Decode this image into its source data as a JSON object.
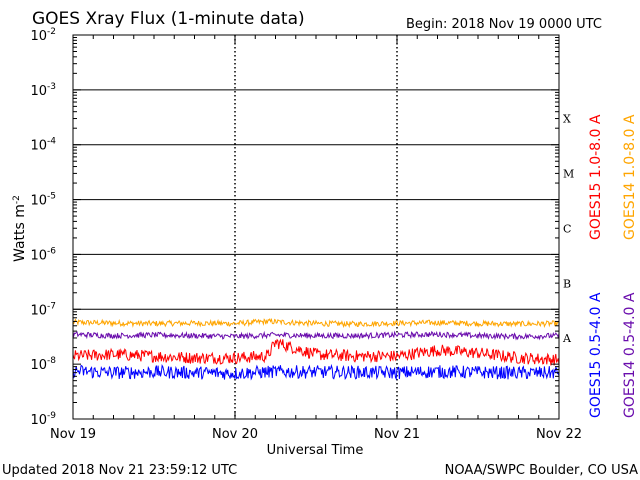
{
  "colors": {
    "goes15_long": "#ff0000",
    "goes14_long": "#ffa500",
    "goes15_short": "#0000ff",
    "goes14_short": "#6a0dad",
    "axes": "#000000",
    "background": "#ffffff"
  },
  "chart_data": {
    "type": "line",
    "title": "GOES Xray Flux (1-minute data)",
    "begin_label": "Begin:  2018 Nov 19 0000 UTC",
    "xlabel": "Universal Time",
    "ylabel": "Watts m",
    "ylabel_superscript": "-2",
    "yscale": "log",
    "ylim": [
      1e-09,
      0.01
    ],
    "xlim_days": [
      0,
      3
    ],
    "x_ticks": [
      {
        "label": "Nov 19",
        "day": 0
      },
      {
        "label": "Nov 20",
        "day": 1
      },
      {
        "label": "Nov 21",
        "day": 2
      },
      {
        "label": "Nov 22",
        "day": 3
      }
    ],
    "y_ticks": [
      {
        "mant": "10",
        "exp": "-9",
        "value": 1e-09
      },
      {
        "mant": "10",
        "exp": "-8",
        "value": 1e-08
      },
      {
        "mant": "10",
        "exp": "-7",
        "value": 1e-07
      },
      {
        "mant": "10",
        "exp": "-6",
        "value": 1e-06
      },
      {
        "mant": "10",
        "exp": "-5",
        "value": 1e-05
      },
      {
        "mant": "10",
        "exp": "-4",
        "value": 0.0001
      },
      {
        "mant": "10",
        "exp": "-3",
        "value": 0.001
      },
      {
        "mant": "10",
        "exp": "-2",
        "value": 0.01
      }
    ],
    "flare_classes": [
      {
        "label": "A",
        "value": 1e-08
      },
      {
        "label": "B",
        "value": 1e-07
      },
      {
        "label": "C",
        "value": 1e-06
      },
      {
        "label": "M",
        "value": 1e-05
      },
      {
        "label": "X",
        "value": 0.0001
      }
    ],
    "grid": "horizontal lines at each decade from 1e-7 to 1e-3, dotted vertical at day boundaries",
    "series": [
      {
        "name": "GOES14 1.0-8.0 A",
        "color": "#ffa500",
        "x": [
          0,
          0.25,
          0.5,
          0.75,
          1.0,
          1.2,
          1.5,
          1.75,
          2.0,
          2.25,
          2.5,
          2.75,
          3.0
        ],
        "y": [
          5.8e-08,
          5.6e-08,
          5.5e-08,
          5.6e-08,
          5.5e-08,
          6e-08,
          5.5e-08,
          5.4e-08,
          5.6e-08,
          5.7e-08,
          5.5e-08,
          5.4e-08,
          5.5e-08
        ]
      },
      {
        "name": "GOES15 1.0-8.0 A",
        "color": "#ff0000",
        "x": [
          0,
          0.25,
          0.5,
          0.75,
          1.0,
          1.2,
          1.25,
          1.5,
          1.75,
          2.0,
          2.25,
          2.5,
          2.75,
          3.0
        ],
        "y": [
          1.4e-08,
          1.5e-08,
          1.4e-08,
          1.3e-08,
          1.3e-08,
          1.4e-08,
          2.5e-08,
          1.5e-08,
          1.4e-08,
          1.4e-08,
          1.8e-08,
          1.6e-08,
          1.3e-08,
          1.2e-08
        ]
      },
      {
        "name": "GOES14 0.5-4.0 A",
        "color": "#6a0dad",
        "x": [
          0,
          0.25,
          0.5,
          0.75,
          1.0,
          1.25,
          1.5,
          1.75,
          2.0,
          2.25,
          2.5,
          2.75,
          3.0
        ],
        "y": [
          3.5e-08,
          3.3e-08,
          3.4e-08,
          3.3e-08,
          3.2e-08,
          3.4e-08,
          3.3e-08,
          3.3e-08,
          3.4e-08,
          3.5e-08,
          3.3e-08,
          3.2e-08,
          3.3e-08
        ]
      },
      {
        "name": "GOES15 0.5-4.0 A",
        "color": "#0000ff",
        "x": [
          0,
          0.25,
          0.5,
          0.75,
          1.0,
          1.25,
          1.5,
          1.75,
          2.0,
          2.25,
          2.5,
          2.75,
          3.0
        ],
        "y": [
          7.5e-09,
          7e-09,
          7.2e-09,
          7e-09,
          6.8e-09,
          7.3e-09,
          7.2e-09,
          7.1e-09,
          7e-09,
          7.3e-09,
          7.1e-09,
          6.9e-09,
          7e-09
        ]
      }
    ],
    "legend_placement": "right side, vertical"
  },
  "footer": {
    "updated": "Updated 2018 Nov 21 23:59:12 UTC",
    "source": "NOAA/SWPC Boulder, CO USA"
  }
}
